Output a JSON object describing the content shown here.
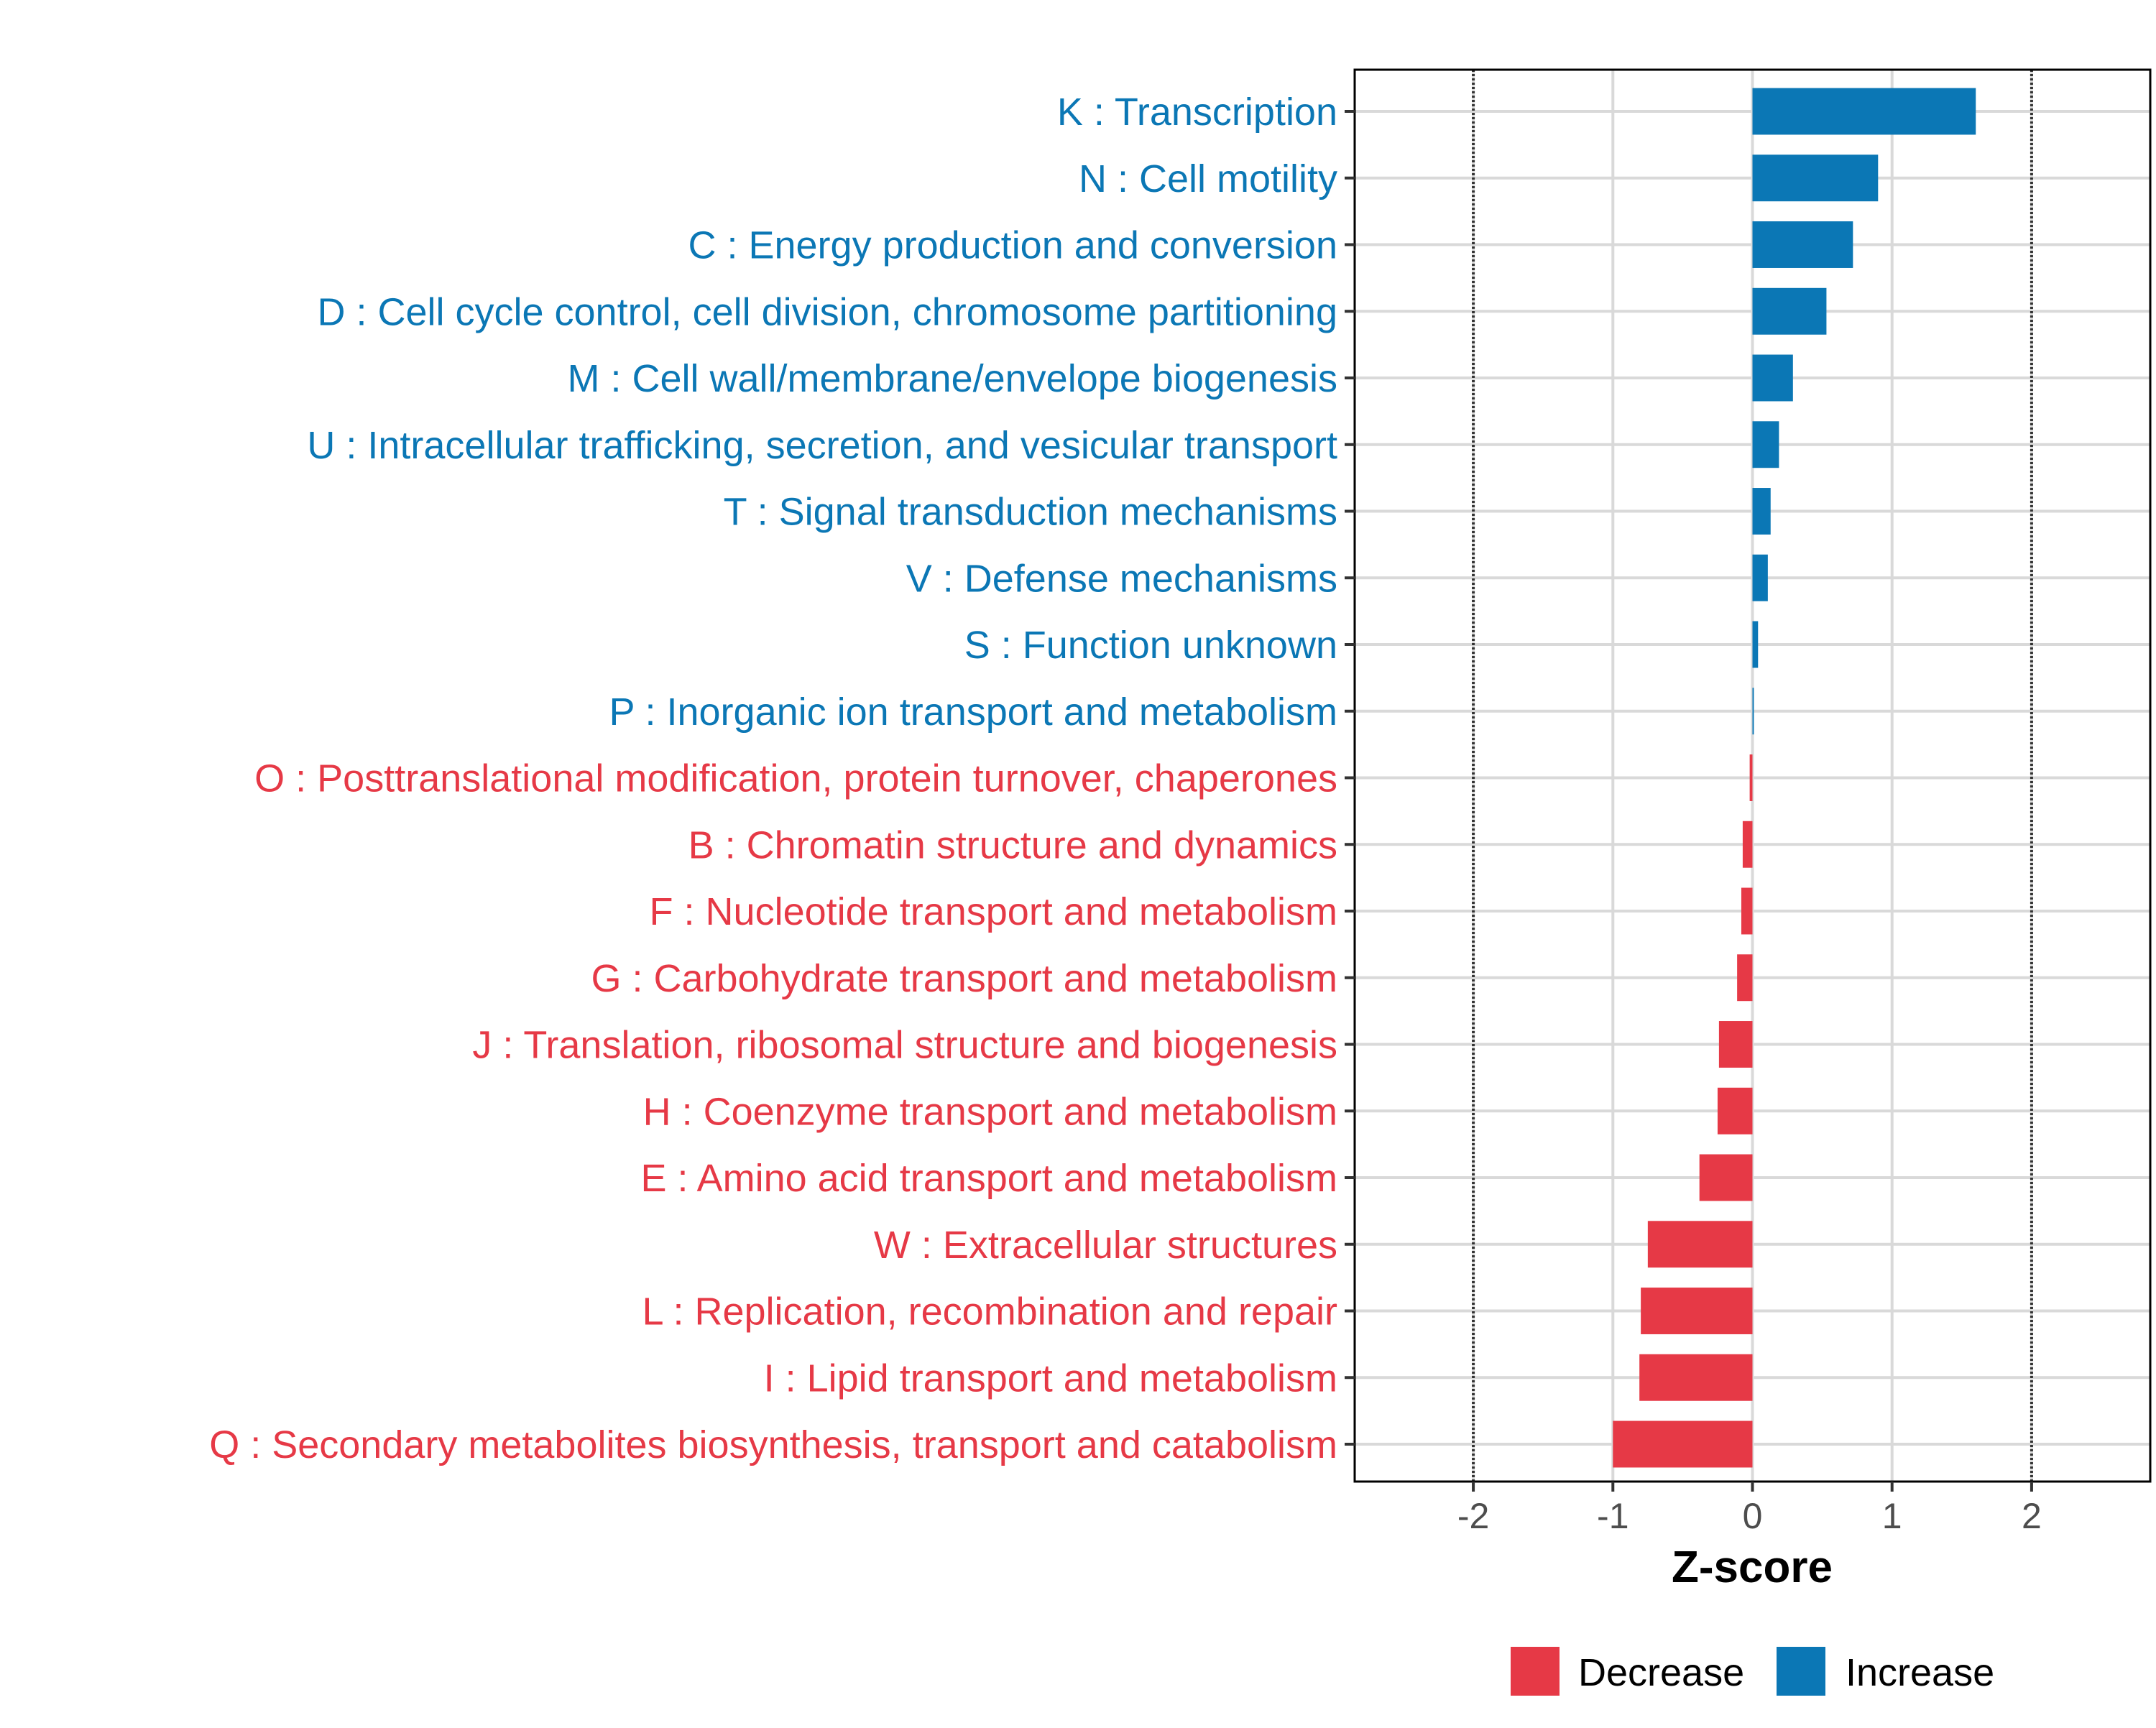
{
  "chart_data": {
    "type": "bar",
    "orientation": "horizontal",
    "xlabel": "Z-score",
    "ylabel": "",
    "xlim": [
      -2.85,
      2.85
    ],
    "x_ticks": [
      -2,
      -1,
      0,
      1,
      2
    ],
    "x_tick_labels": [
      "-2",
      "-1",
      "0",
      "1",
      "2"
    ],
    "reference_lines": [
      -2,
      2
    ],
    "grid": true,
    "legend_position": "bottom",
    "colors": {
      "Increase": "#0b77b5",
      "Decrease": "#e63946"
    },
    "legend": [
      {
        "label": "Decrease",
        "color": "#e63946"
      },
      {
        "label": "Increase",
        "color": "#0b77b5"
      }
    ],
    "categories": [
      "K : Transcription",
      "N : Cell motility",
      "C : Energy production and conversion",
      "D : Cell cycle control, cell division, chromosome partitioning",
      "M : Cell wall/membrane/envelope biogenesis",
      "U : Intracellular trafficking, secretion, and vesicular transport",
      "T : Signal transduction mechanisms",
      "V : Defense mechanisms",
      "S : Function unknown",
      "P : Inorganic ion transport and metabolism",
      "O : Posttranslational modification, protein turnover, chaperones",
      "B : Chromatin structure and dynamics",
      "F : Nucleotide transport and metabolism",
      "G : Carbohydrate transport and metabolism",
      "J : Translation, ribosomal structure and biogenesis",
      "H : Coenzyme transport and metabolism",
      "E : Amino acid transport and metabolism",
      "W : Extracellular structures",
      "L : Replication, recombination and repair",
      "I : Lipid transport and metabolism",
      "Q : Secondary metabolites biosynthesis, transport and catabolism"
    ],
    "values": [
      1.6,
      0.9,
      0.72,
      0.53,
      0.29,
      0.19,
      0.13,
      0.11,
      0.04,
      0.01,
      -0.02,
      -0.07,
      -0.08,
      -0.11,
      -0.24,
      -0.25,
      -0.38,
      -0.75,
      -0.8,
      -0.81,
      -1.0
    ],
    "groups": [
      "Increase",
      "Increase",
      "Increase",
      "Increase",
      "Increase",
      "Increase",
      "Increase",
      "Increase",
      "Increase",
      "Increase",
      "Decrease",
      "Decrease",
      "Decrease",
      "Decrease",
      "Decrease",
      "Decrease",
      "Decrease",
      "Decrease",
      "Decrease",
      "Decrease",
      "Decrease"
    ]
  }
}
